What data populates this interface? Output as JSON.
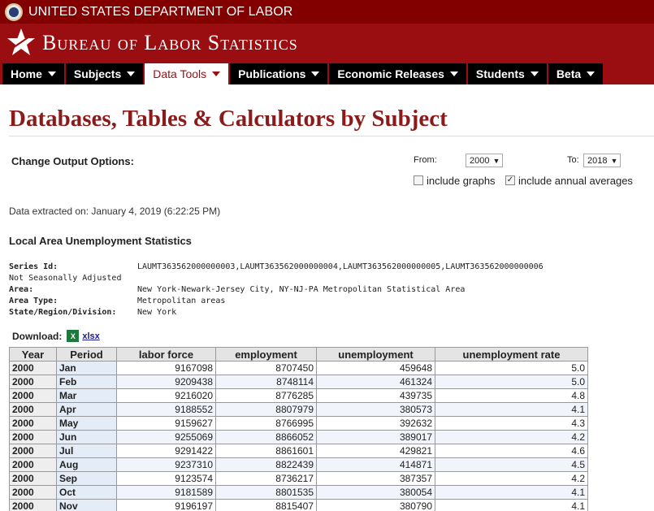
{
  "header": {
    "department": "UNITED STATES DEPARTMENT OF LABOR",
    "agency": "Bureau of Labor Statistics"
  },
  "nav": [
    {
      "label": "Home"
    },
    {
      "label": "Subjects"
    },
    {
      "label": "Data Tools",
      "active": true
    },
    {
      "label": "Publications"
    },
    {
      "label": "Economic Releases"
    },
    {
      "label": "Students"
    },
    {
      "label": "Beta"
    }
  ],
  "page_title": "Databases, Tables & Calculators by Subject",
  "options": {
    "label": "Change Output Options:",
    "from_label": "From:",
    "from_value": "2000",
    "to_label": "To:",
    "to_value": "2018",
    "include_graphs_label": "include graphs",
    "include_graphs_checked": false,
    "include_annual_label": "include annual averages",
    "include_annual_checked": true
  },
  "extracted": "Data extracted on: January 4, 2019 (6:22:25 PM)",
  "survey_title": "Local Area Unemployment Statistics",
  "meta": {
    "series_id_key": "Series Id:",
    "series_id_val": "LAUMT363562000000003,LAUMT363562000000004,LAUMT363562000000005,LAUMT363562000000006",
    "seasonal": "Not Seasonally Adjusted",
    "area_key": "Area:",
    "area_val": "New York-Newark-Jersey City, NY-NJ-PA Metropolitan Statistical Area",
    "area_type_key": "Area Type:",
    "area_type_val": "Metropolitan areas",
    "state_key": "State/Region/Division:",
    "state_val": "New York"
  },
  "download": {
    "label": "Download:",
    "icon_text": "X",
    "link": "xlsx"
  },
  "table": {
    "headers": [
      "Year",
      "Period",
      "labor force",
      "employment",
      "unemployment",
      "unemployment rate"
    ],
    "rows": [
      [
        "2000",
        "Jan",
        "9167098",
        "8707450",
        "459648",
        "5.0"
      ],
      [
        "2000",
        "Feb",
        "9209438",
        "8748114",
        "461324",
        "5.0"
      ],
      [
        "2000",
        "Mar",
        "9216020",
        "8776285",
        "439735",
        "4.8"
      ],
      [
        "2000",
        "Apr",
        "9188552",
        "8807979",
        "380573",
        "4.1"
      ],
      [
        "2000",
        "May",
        "9159627",
        "8766995",
        "392632",
        "4.3"
      ],
      [
        "2000",
        "Jun",
        "9255069",
        "8866052",
        "389017",
        "4.2"
      ],
      [
        "2000",
        "Jul",
        "9291422",
        "8861601",
        "429821",
        "4.6"
      ],
      [
        "2000",
        "Aug",
        "9237310",
        "8822439",
        "414871",
        "4.5"
      ],
      [
        "2000",
        "Sep",
        "9123574",
        "8736217",
        "387357",
        "4.2"
      ],
      [
        "2000",
        "Oct",
        "9181589",
        "8801535",
        "380054",
        "4.1"
      ],
      [
        "2000",
        "Nov",
        "9196197",
        "8815407",
        "380790",
        "4.1"
      ]
    ]
  }
}
